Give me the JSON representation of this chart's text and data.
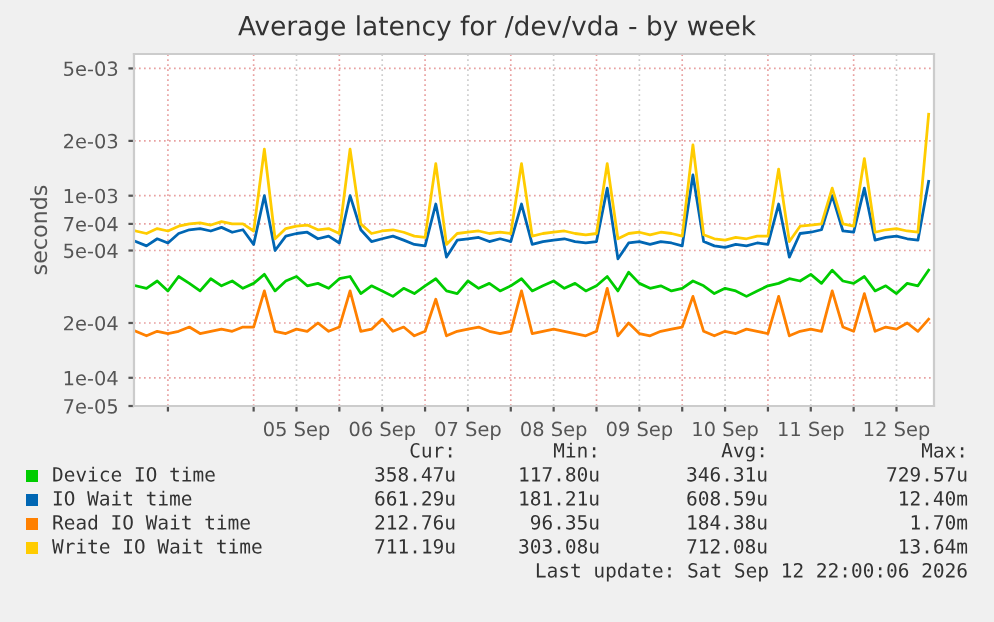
{
  "chart_data": {
    "type": "line",
    "title": "Average latency for /dev/vda - by week",
    "ylabel": "seconds",
    "x": [
      "2026-09-03T15:00",
      "2026-09-03T18:00",
      "2026-09-03T21:00",
      "2026-09-04T00:00",
      "2026-09-04T03:00",
      "2026-09-04T06:00",
      "2026-09-04T09:00",
      "2026-09-04T12:00",
      "2026-09-04T15:00",
      "2026-09-04T18:00",
      "2026-09-04T21:00",
      "2026-09-05T00:00",
      "2026-09-05T03:00",
      "2026-09-05T06:00",
      "2026-09-05T09:00",
      "2026-09-05T12:00",
      "2026-09-05T15:00",
      "2026-09-05T18:00",
      "2026-09-05T21:00",
      "2026-09-06T00:00",
      "2026-09-06T03:00",
      "2026-09-06T06:00",
      "2026-09-06T09:00",
      "2026-09-06T12:00",
      "2026-09-06T15:00",
      "2026-09-06T18:00",
      "2026-09-06T21:00",
      "2026-09-07T00:00",
      "2026-09-07T03:00",
      "2026-09-07T06:00",
      "2026-09-07T09:00",
      "2026-09-07T12:00",
      "2026-09-07T15:00",
      "2026-09-07T18:00",
      "2026-09-07T21:00",
      "2026-09-08T00:00",
      "2026-09-08T03:00",
      "2026-09-08T06:00",
      "2026-09-08T09:00",
      "2026-09-08T12:00",
      "2026-09-08T15:00",
      "2026-09-08T18:00",
      "2026-09-08T21:00",
      "2026-09-09T00:00",
      "2026-09-09T03:00",
      "2026-09-09T06:00",
      "2026-09-09T09:00",
      "2026-09-09T12:00",
      "2026-09-09T15:00",
      "2026-09-09T18:00",
      "2026-09-09T21:00",
      "2026-09-10T00:00",
      "2026-09-10T03:00",
      "2026-09-10T06:00",
      "2026-09-10T09:00",
      "2026-09-10T12:00",
      "2026-09-10T15:00",
      "2026-09-10T18:00",
      "2026-09-10T21:00",
      "2026-09-11T00:00",
      "2026-09-11T03:00",
      "2026-09-11T06:00",
      "2026-09-11T09:00",
      "2026-09-11T12:00",
      "2026-09-11T15:00",
      "2026-09-11T18:00",
      "2026-09-11T21:00",
      "2026-09-12T00:00",
      "2026-09-12T03:00",
      "2026-09-12T06:00",
      "2026-09-12T09:00",
      "2026-09-12T12:00",
      "2026-09-12T15:00",
      "2026-09-12T18:00",
      "2026-09-12T21:00"
    ],
    "series": [
      {
        "name": "Device IO time",
        "color": "#00cc00",
        "values": [
          0.00032,
          0.00031,
          0.00034,
          0.0003,
          0.00036,
          0.00033,
          0.0003,
          0.00035,
          0.00032,
          0.00034,
          0.00031,
          0.00033,
          0.00037,
          0.0003,
          0.00034,
          0.00036,
          0.00032,
          0.00033,
          0.00031,
          0.00035,
          0.00036,
          0.00029,
          0.00032,
          0.0003,
          0.00028,
          0.00031,
          0.00029,
          0.00032,
          0.00035,
          0.0003,
          0.00029,
          0.00034,
          0.00031,
          0.00033,
          0.0003,
          0.00032,
          0.00035,
          0.0003,
          0.00032,
          0.00034,
          0.00031,
          0.00033,
          0.0003,
          0.00032,
          0.00036,
          0.0003,
          0.00038,
          0.00033,
          0.00031,
          0.00032,
          0.0003,
          0.00031,
          0.00034,
          0.00032,
          0.00029,
          0.00031,
          0.0003,
          0.00028,
          0.0003,
          0.00032,
          0.00033,
          0.00035,
          0.00034,
          0.00037,
          0.00033,
          0.00039,
          0.00034,
          0.00033,
          0.00036,
          0.0003,
          0.00032,
          0.00029,
          0.00033,
          0.00032,
          0.00039
        ]
      },
      {
        "name": "IO Wait time",
        "color": "#0066b3",
        "values": [
          0.00056,
          0.00053,
          0.00058,
          0.00055,
          0.00062,
          0.00065,
          0.00066,
          0.00064,
          0.00067,
          0.00063,
          0.00065,
          0.00054,
          0.001,
          0.0005,
          0.0006,
          0.00062,
          0.00063,
          0.00058,
          0.0006,
          0.00055,
          0.001,
          0.00065,
          0.00056,
          0.00058,
          0.0006,
          0.00057,
          0.00054,
          0.00053,
          0.0009,
          0.00046,
          0.00057,
          0.00058,
          0.00059,
          0.00056,
          0.00058,
          0.00056,
          0.0009,
          0.00054,
          0.00056,
          0.00057,
          0.00058,
          0.00056,
          0.00055,
          0.00056,
          0.0011,
          0.00045,
          0.00055,
          0.00056,
          0.00054,
          0.00056,
          0.00055,
          0.00053,
          0.0013,
          0.00056,
          0.00053,
          0.00052,
          0.00054,
          0.00053,
          0.00055,
          0.00054,
          0.0009,
          0.00046,
          0.00062,
          0.00063,
          0.00065,
          0.001,
          0.00064,
          0.00063,
          0.0011,
          0.00057,
          0.00059,
          0.0006,
          0.00058,
          0.00057,
          0.0012
        ]
      },
      {
        "name": "Read IO Wait time",
        "color": "#ff8000",
        "values": [
          0.00018,
          0.00017,
          0.00018,
          0.000175,
          0.00018,
          0.00019,
          0.000175,
          0.00018,
          0.000185,
          0.00018,
          0.00019,
          0.00019,
          0.0003,
          0.00018,
          0.000175,
          0.000185,
          0.00018,
          0.0002,
          0.00018,
          0.00019,
          0.0003,
          0.00018,
          0.000185,
          0.00021,
          0.00018,
          0.00019,
          0.00017,
          0.00018,
          0.00027,
          0.00017,
          0.00018,
          0.000185,
          0.00019,
          0.00018,
          0.000175,
          0.00018,
          0.0003,
          0.000175,
          0.00018,
          0.000185,
          0.00018,
          0.000175,
          0.00017,
          0.00018,
          0.00031,
          0.00017,
          0.0002,
          0.000175,
          0.00017,
          0.00018,
          0.000185,
          0.00019,
          0.00028,
          0.00018,
          0.00017,
          0.00018,
          0.000175,
          0.000185,
          0.00018,
          0.000175,
          0.00028,
          0.00017,
          0.00018,
          0.000185,
          0.00018,
          0.0003,
          0.00019,
          0.00018,
          0.00029,
          0.00018,
          0.00019,
          0.000185,
          0.0002,
          0.00018,
          0.00021
        ]
      },
      {
        "name": "Write IO Wait time",
        "color": "#ffcc00",
        "values": [
          0.00064,
          0.00062,
          0.00066,
          0.00064,
          0.00068,
          0.0007,
          0.00071,
          0.00069,
          0.00072,
          0.0007,
          0.0007,
          0.00064,
          0.0018,
          0.00058,
          0.00066,
          0.00068,
          0.00069,
          0.00065,
          0.00066,
          0.00062,
          0.0018,
          0.0007,
          0.00062,
          0.00064,
          0.00065,
          0.00063,
          0.0006,
          0.00059,
          0.0015,
          0.00054,
          0.00062,
          0.00063,
          0.00064,
          0.00062,
          0.00063,
          0.00062,
          0.0015,
          0.0006,
          0.00062,
          0.00063,
          0.00064,
          0.00062,
          0.00061,
          0.00062,
          0.0015,
          0.00058,
          0.00062,
          0.00063,
          0.00061,
          0.00063,
          0.00062,
          0.0006,
          0.0019,
          0.00061,
          0.00058,
          0.00057,
          0.00059,
          0.00058,
          0.0006,
          0.0006,
          0.0014,
          0.00056,
          0.00068,
          0.00069,
          0.0007,
          0.0011,
          0.0007,
          0.00068,
          0.0016,
          0.00063,
          0.00065,
          0.00066,
          0.00064,
          0.00063,
          0.0028
        ]
      }
    ],
    "log": true,
    "ylim": [
      7e-05,
      0.006
    ],
    "yticks": [
      {
        "value": 7e-05,
        "label": "7e-05"
      },
      {
        "value": 0.0001,
        "label": "1e-04"
      },
      {
        "value": 0.0002,
        "label": "2e-04"
      },
      {
        "value": 0.0005,
        "label": "5e-04"
      },
      {
        "value": 0.0007,
        "label": "7e-04"
      },
      {
        "value": 0.001,
        "label": "1e-03"
      },
      {
        "value": 0.002,
        "label": "2e-03"
      },
      {
        "value": 0.005,
        "label": "5e-03"
      }
    ],
    "xlim": [
      "2026-09-03T14:30",
      "2026-09-12T22:30"
    ],
    "xticks": [
      {
        "value": "2026-09-04T00:00",
        "label": null
      },
      {
        "value": "2026-09-05T00:00",
        "label": null
      },
      {
        "value": "2026-09-05T12:00",
        "label": "05 Sep"
      },
      {
        "value": "2026-09-06T00:00",
        "label": null
      },
      {
        "value": "2026-09-06T12:00",
        "label": "06 Sep"
      },
      {
        "value": "2026-09-07T00:00",
        "label": null
      },
      {
        "value": "2026-09-07T12:00",
        "label": "07 Sep"
      },
      {
        "value": "2026-09-08T00:00",
        "label": null
      },
      {
        "value": "2026-09-08T12:00",
        "label": "08 Sep"
      },
      {
        "value": "2026-09-09T00:00",
        "label": null
      },
      {
        "value": "2026-09-09T12:00",
        "label": "09 Sep"
      },
      {
        "value": "2026-09-10T00:00",
        "label": null
      },
      {
        "value": "2026-09-10T12:00",
        "label": "10 Sep"
      },
      {
        "value": "2026-09-11T00:00",
        "label": null
      },
      {
        "value": "2026-09-11T12:00",
        "label": "11 Sep"
      },
      {
        "value": "2026-09-12T00:00",
        "label": null
      },
      {
        "value": "2026-09-12T12:00",
        "label": "12 Sep"
      }
    ],
    "grid": true,
    "legend": "bottom",
    "marker": "none",
    "line_style": "solid",
    "annotations": [
      "Cur:",
      "Min:",
      "Avg:",
      "Max:",
      "358.47u",
      "117.80u",
      "346.31u",
      "729.57u",
      "661.29u",
      "181.21u",
      "608.59u",
      "12.40m",
      "212.76u",
      "96.35u",
      "184.38u",
      "1.70m",
      "711.19u",
      "303.08u",
      "712.08u",
      "13.64m",
      "Last update: Sat Sep 12 22:00:06 2026"
    ]
  }
}
